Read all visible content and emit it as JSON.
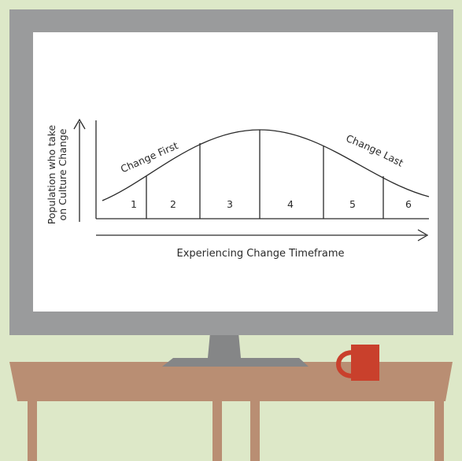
{
  "colors": {
    "background": "#dde8c8",
    "monitor_bezel": "#9a9b9c",
    "monitor_stand": "#858687",
    "screen": "#ffffff",
    "diagram_ink": "#2a2a2a",
    "desk_top": "#b98e73",
    "desk_legs": "#b98e73",
    "mug": "#c9402c"
  },
  "diagram": {
    "y_axis_label_line1": "Population who take",
    "y_axis_label_line2": "on Culture Change",
    "x_axis_label": "Experiencing Change Timeframe",
    "curve_label_left": "Change First",
    "curve_label_right": "Change Last",
    "segments": [
      "1",
      "2",
      "3",
      "4",
      "5",
      "6"
    ]
  },
  "icons": {
    "mug": "coffee-mug-icon",
    "up_arrow": "arrow-up-icon",
    "right_arrow": "arrow-right-icon"
  }
}
